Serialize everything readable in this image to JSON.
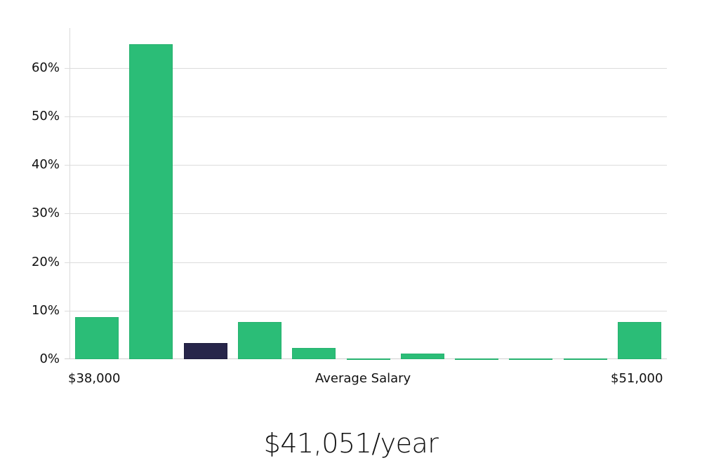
{
  "chart_data": {
    "type": "bar",
    "title": "",
    "xlabel": "Average Salary",
    "ylabel": "",
    "x_range_labels": [
      "$38,000",
      "$51,000"
    ],
    "categories": [
      "bin1",
      "bin2",
      "bin3",
      "bin4",
      "bin5",
      "bin6",
      "bin7",
      "bin8",
      "bin9",
      "bin10",
      "bin11"
    ],
    "values": [
      8.7,
      64.9,
      3.3,
      7.7,
      2.3,
      0.2,
      1.2,
      0.2,
      0.2,
      0.2,
      7.7
    ],
    "highlighted_index": 2,
    "yticks": [
      "0%",
      "10%",
      "20%",
      "30%",
      "40%",
      "50%",
      "60%"
    ],
    "ylim": [
      0,
      68
    ],
    "grid": true,
    "colors": {
      "bar": "#2bbd77",
      "highlight": "#27254a",
      "grid": "#dcdcdc"
    }
  },
  "labels": {
    "x_min": "$38,000",
    "x_center": "Average Salary",
    "x_max": "$51,000",
    "salary": "$41,051/year"
  }
}
